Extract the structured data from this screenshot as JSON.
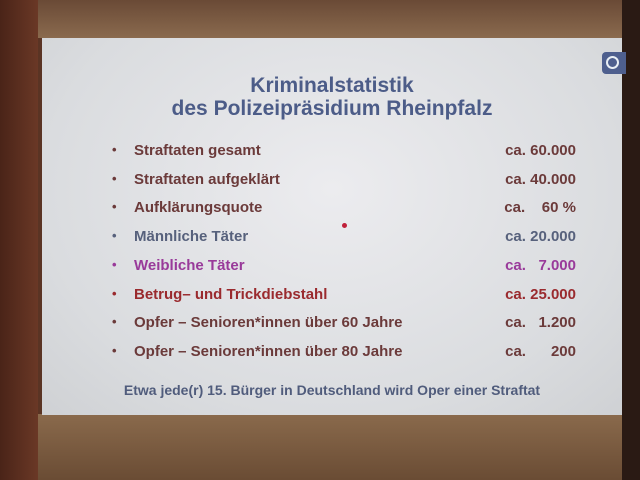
{
  "slide": {
    "title_line1": "Kriminalstatistik",
    "title_line2": "des Polizeipräsidium Rheinpfalz",
    "bullet": "•",
    "items": [
      {
        "label": "Straftaten gesamt",
        "value": "ca. 60.000",
        "color": "#6b3a3a"
      },
      {
        "label": "Straftaten aufgeklärt",
        "value": "ca. 40.000",
        "color": "#6b3a3a"
      },
      {
        "label": "Aufklärungsquote",
        "value": "ca.    60 %",
        "color": "#6b3a3a"
      },
      {
        "label": "Männliche Täter",
        "value": "ca. 20.000",
        "color": "#57617c"
      },
      {
        "label": "Weibliche Täter",
        "value": "ca.   7.000",
        "color": "#993a9a"
      },
      {
        "label": "Betrug– und Trickdiebstahl",
        "value": "ca. 25.000",
        "color": "#9a2a2e"
      },
      {
        "label": "Opfer – Senioren*innen über 60 Jahre",
        "value": "ca.   1.200",
        "color": "#6b3a3a"
      },
      {
        "label": "Opfer – Senioren*innen über 80 Jahre",
        "value": "ca.      200",
        "color": "#6b3a3a"
      }
    ],
    "footer": "Etwa jede(r) 15. Bürger in Deutschland wird Oper einer Straftat",
    "logo_icon": "police-logo-icon",
    "title_color": "#4c5c88"
  }
}
